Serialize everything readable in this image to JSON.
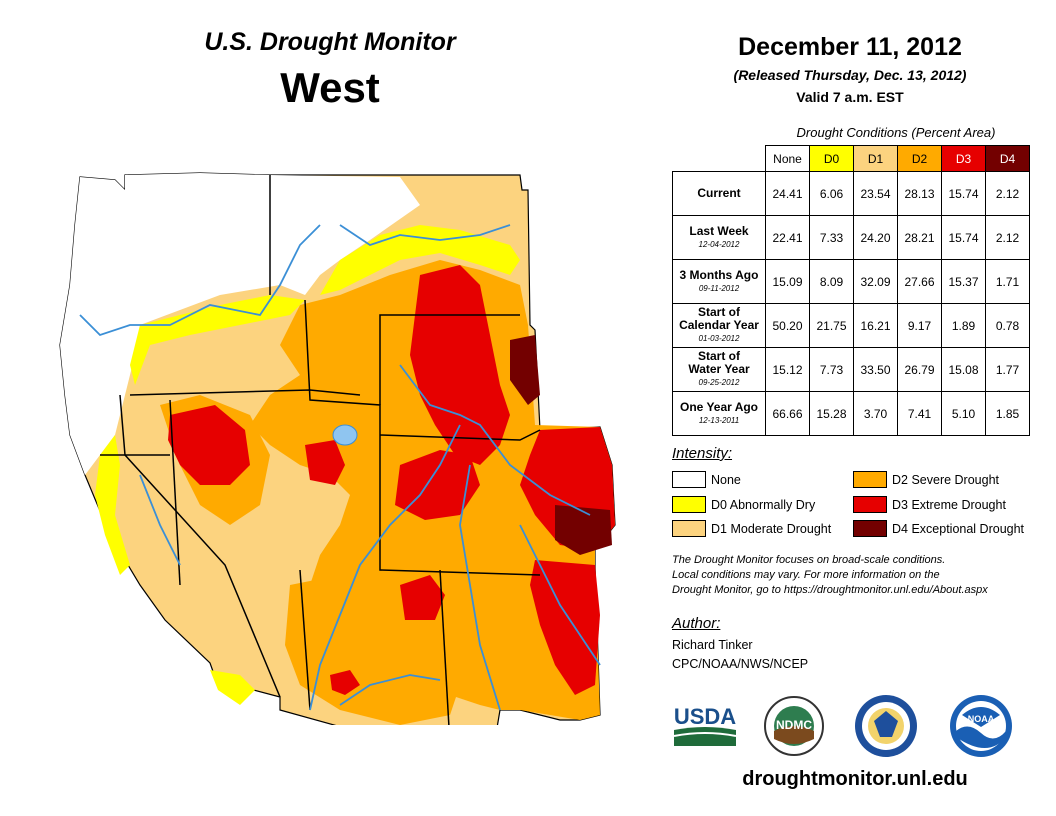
{
  "header": {
    "title": "U.S. Drought Monitor",
    "region": "West",
    "date": "December 11, 2012",
    "released": "(Released Thursday, Dec. 13, 2012)",
    "valid": "Valid 7 a.m. EST"
  },
  "table": {
    "title": "Drought Conditions (Percent Area)",
    "columns": [
      "None",
      "D0",
      "D1",
      "D2",
      "D3",
      "D4"
    ],
    "rows": [
      {
        "label": "Current",
        "label2": "",
        "date": "",
        "values": [
          "24.41",
          "6.06",
          "23.54",
          "28.13",
          "15.74",
          "2.12"
        ]
      },
      {
        "label": "Last Week",
        "label2": "",
        "date": "12-04-2012",
        "values": [
          "22.41",
          "7.33",
          "24.20",
          "28.21",
          "15.74",
          "2.12"
        ]
      },
      {
        "label": "3 Months Ago",
        "label2": "",
        "date": "09-11-2012",
        "values": [
          "15.09",
          "8.09",
          "32.09",
          "27.66",
          "15.37",
          "1.71"
        ]
      },
      {
        "label": "Start of",
        "label2": "Calendar Year",
        "date": "01-03-2012",
        "values": [
          "50.20",
          "21.75",
          "16.21",
          "9.17",
          "1.89",
          "0.78"
        ]
      },
      {
        "label": "Start of",
        "label2": "Water Year",
        "date": "09-25-2012",
        "values": [
          "15.12",
          "7.73",
          "33.50",
          "26.79",
          "15.08",
          "1.77"
        ]
      },
      {
        "label": "One Year Ago",
        "label2": "",
        "date": "12-13-2011",
        "values": [
          "66.66",
          "15.28",
          "3.70",
          "7.41",
          "5.10",
          "1.85"
        ]
      }
    ]
  },
  "legend": {
    "title": "Intensity:",
    "items": [
      {
        "label": "None",
        "color": "#ffffff"
      },
      {
        "label": "D0 Abnormally Dry",
        "color": "#ffff00"
      },
      {
        "label": "D1 Moderate Drought",
        "color": "#fcd37f"
      },
      {
        "label": "D2 Severe Drought",
        "color": "#ffaa00"
      },
      {
        "label": "D3 Extreme Drought",
        "color": "#e60000"
      },
      {
        "label": "D4 Exceptional Drought",
        "color": "#730000"
      }
    ]
  },
  "note": {
    "line1": "The Drought Monitor focuses on broad-scale conditions.",
    "line2": "Local conditions may vary. For more information on the",
    "line3": "Drought Monitor, go to https://droughtmonitor.unl.edu/About.aspx"
  },
  "author": {
    "title": "Author:",
    "name": "Richard Tinker",
    "org": "CPC/NOAA/NWS/NCEP"
  },
  "logos": {
    "usda": "USDA",
    "ndmc": "NDMC",
    "noaa": "NOAA"
  },
  "footer": {
    "url": "droughtmonitor.unl.edu"
  },
  "colors": {
    "none": "#ffffff",
    "d0": "#ffff00",
    "d1": "#fcd37f",
    "d2": "#ffaa00",
    "d3": "#e60000",
    "d4": "#730000",
    "river": "#3b8fd6"
  }
}
